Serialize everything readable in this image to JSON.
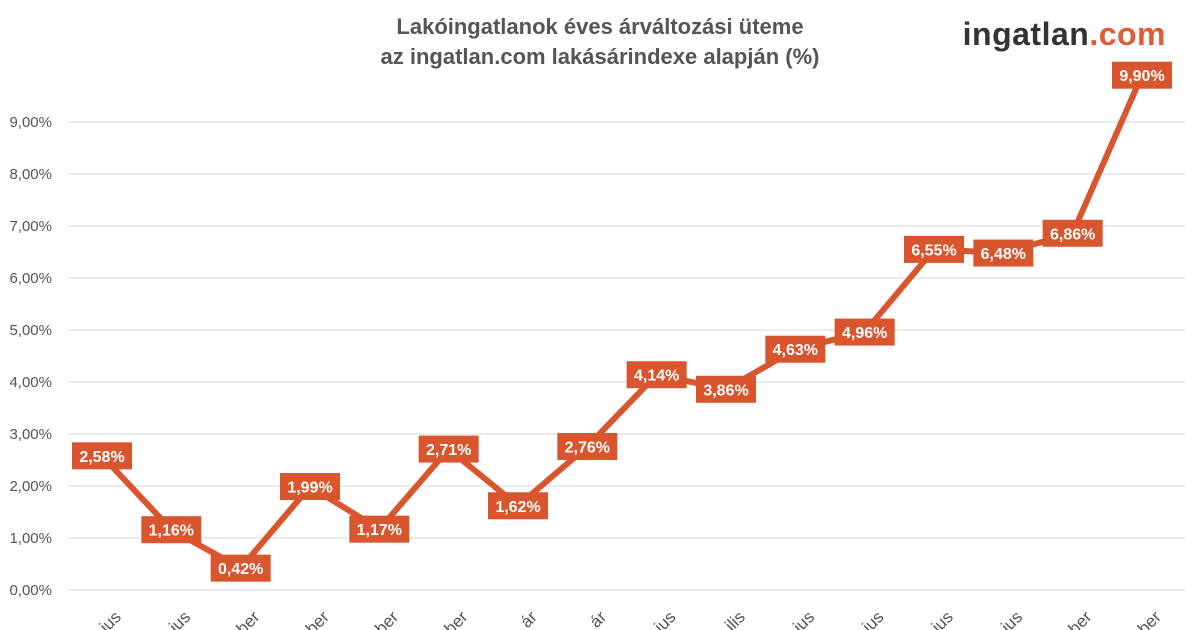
{
  "logo": {
    "part1": "ingatlan",
    "part2": ".com"
  },
  "colors": {
    "series": "#d9552e",
    "grid": "#d9d9d9",
    "text": "#555555",
    "logo_dark": "#333333",
    "logo_accent": "#e05a33"
  },
  "chart_data": {
    "type": "line",
    "title": [
      "Lakóingatlanok éves árváltozási üteme",
      "az ingatlan.com lakásárindexe alapján (%)"
    ],
    "xlabel": "",
    "ylabel": "",
    "ylim": [
      0,
      10
    ],
    "yticks": [
      "0,00%",
      "1,00%",
      "2,00%",
      "3,00%",
      "4,00%",
      "5,00%",
      "6,00%",
      "7,00%",
      "8,00%",
      "9,00%"
    ],
    "grid": true,
    "categories": [
      "ius",
      "ius",
      "ber",
      "ber",
      "ber",
      "ber",
      "ár",
      "ár",
      "ius",
      "ilis",
      "ius",
      "ius",
      "ius",
      "ius",
      "ber",
      "ber"
    ],
    "values": [
      2.58,
      1.16,
      0.42,
      1.99,
      1.17,
      2.71,
      1.62,
      2.76,
      4.14,
      3.86,
      4.63,
      4.96,
      6.55,
      6.48,
      6.86,
      9.9
    ],
    "labels": [
      "2,58%",
      "1,16%",
      "0,42%",
      "1,99%",
      "1,17%",
      "2,71%",
      "1,62%",
      "2,76%",
      "4,14%",
      "3,86%",
      "4,63%",
      "4,96%",
      "6,55%",
      "6,48%",
      "6,86%",
      "9,90%"
    ]
  }
}
